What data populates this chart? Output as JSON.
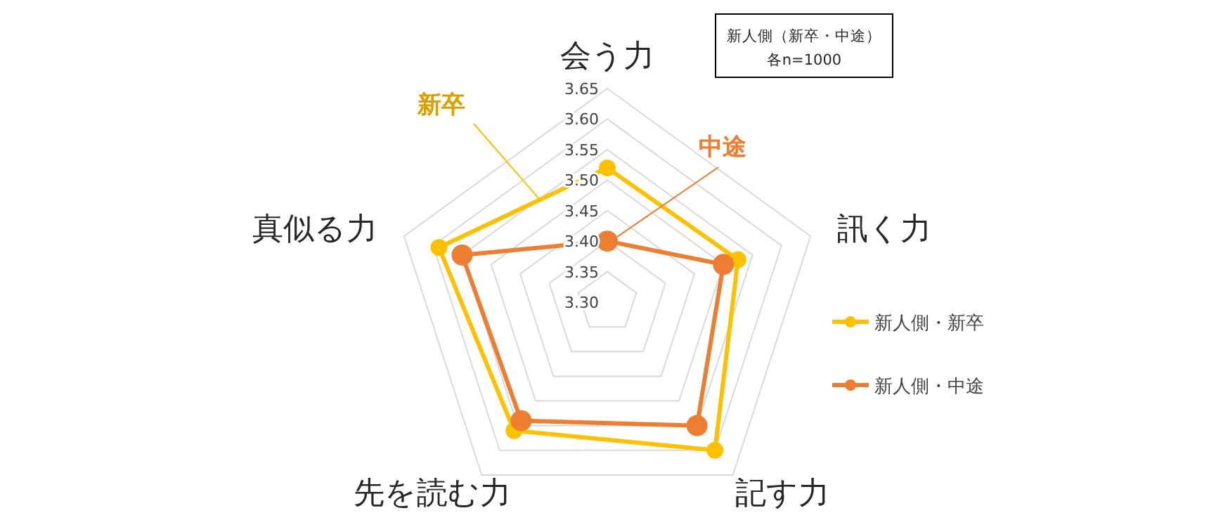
{
  "chart_data": {
    "type": "radar",
    "categories": [
      "会う力",
      "訊く力",
      "記す力",
      "先を読む力",
      "真似る力"
    ],
    "ylim": [
      3.3,
      3.65
    ],
    "yticks": [
      {
        "value": 3.3,
        "label": "3.30"
      },
      {
        "value": 3.35,
        "label": "3.35"
      },
      {
        "value": 3.4,
        "label": "3.40"
      },
      {
        "value": 3.45,
        "label": "3.45"
      },
      {
        "value": 3.5,
        "label": "3.50"
      },
      {
        "value": 3.55,
        "label": "3.55"
      },
      {
        "value": 3.6,
        "label": "3.60"
      },
      {
        "value": 3.65,
        "label": "3.65"
      }
    ],
    "grid": true,
    "legend": "right",
    "marker": "circle",
    "line_style": "solid",
    "series": [
      {
        "name": "新人側・新卒",
        "color": "#ffc000",
        "values": [
          3.52,
          3.525,
          3.6,
          3.56,
          3.59
        ]
      },
      {
        "name": "新人側・中途",
        "color": "#ed7d31",
        "values": [
          3.4,
          3.5,
          3.55,
          3.54,
          3.55
        ]
      }
    ],
    "annotations": [
      "新卒",
      "中途",
      "新人側（新卒・中途）",
      "各n=1000"
    ]
  }
}
